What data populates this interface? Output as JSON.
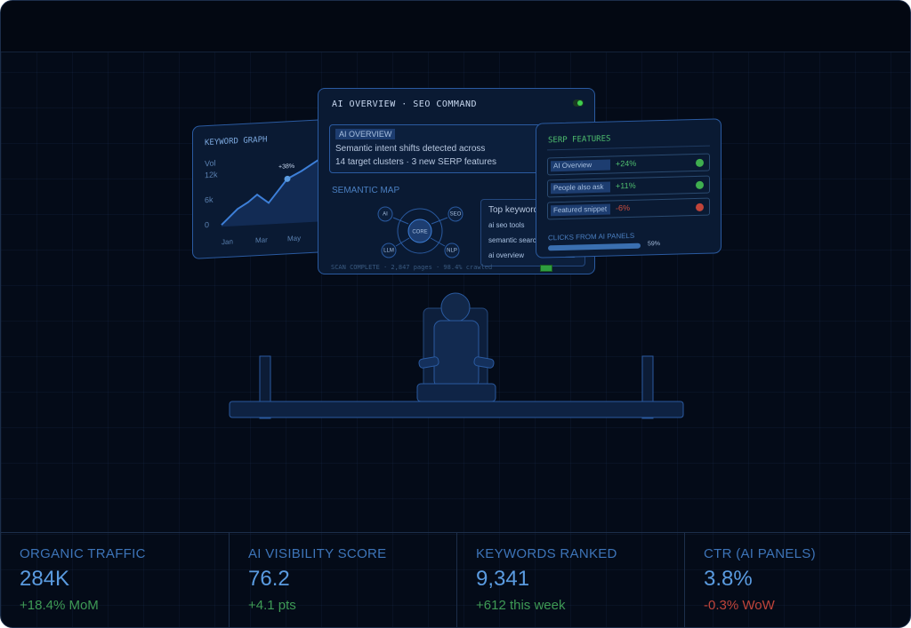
{
  "keyword_graph": {
    "title": "KEYWORD GRAPH",
    "axis_label": "Vol",
    "y_ticks": [
      "12k",
      "6k",
      "0"
    ],
    "callout": "+38%",
    "x_ticks": [
      "Jan",
      "Mar",
      "May"
    ]
  },
  "command_panel": {
    "title": "AI OVERVIEW · SEO COMMAND",
    "overview": {
      "tag": "AI OVERVIEW",
      "lines": [
        "Semantic intent shifts detected across",
        "14 target clusters · 3 new SERP features"
      ]
    },
    "semantic_map": {
      "title": "SEMANTIC MAP",
      "nodes": [
        "AI",
        "SEO",
        "CORE",
        "LLM",
        "NLP"
      ]
    },
    "top_keywords": {
      "title": "Top keywords",
      "items": [
        "ai seo tools",
        "semantic search",
        "ai overview"
      ]
    },
    "status": "SCAN COMPLETE · 2,847 pages · 98.4% crawled"
  },
  "serp_panel": {
    "title": "SERP FEATURES",
    "rows": [
      {
        "label": "AI Overview",
        "change": "+24%"
      },
      {
        "label": "People also ask",
        "change": "+11%"
      },
      {
        "label": "Featured snippet",
        "change": "-6%"
      }
    ],
    "clicks": {
      "label": "CLICKS FROM AI PANELS",
      "value": "59%"
    }
  },
  "stats": [
    {
      "label": "ORGANIC TRAFFIC",
      "value": "284K",
      "change": "+18.4% MoM"
    },
    {
      "label": "AI VISIBILITY SCORE",
      "value": "76.2",
      "change": "+4.1 pts"
    },
    {
      "label": "KEYWORDS RANKED",
      "value": "9,341",
      "change": "+612 this week"
    },
    {
      "label": "CTR (AI PANELS)",
      "value": "3.8%",
      "change": "-0.3% WoW"
    }
  ]
}
